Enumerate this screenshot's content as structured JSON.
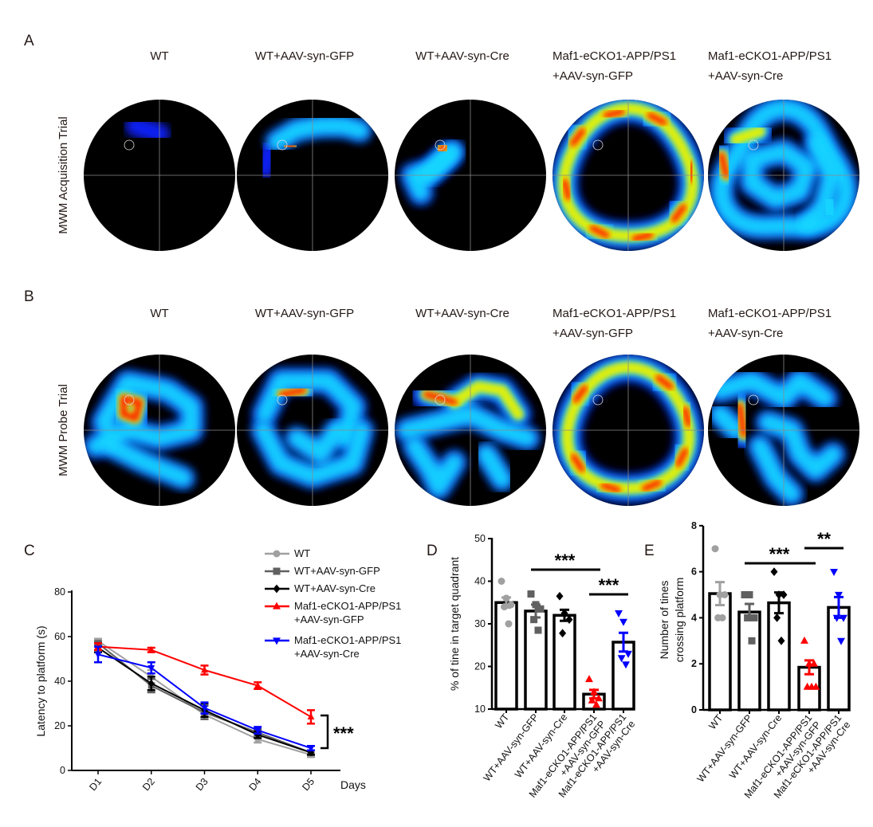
{
  "panel_labels": {
    "A": "A",
    "B": "B",
    "C": "C",
    "D": "D",
    "E": "E"
  },
  "row_labels": {
    "A": "MWM Acquisition Trial",
    "B": "MWM Probe Trial"
  },
  "group_titles": [
    {
      "line1": "WT",
      "line2": ""
    },
    {
      "line1": "WT+AAV-syn-GFP",
      "line2": ""
    },
    {
      "line1": "WT+AAV-syn-Cre",
      "line2": ""
    },
    {
      "line1": "Maf1-eCKO1-APP/PS1",
      "line2": "+AAV-syn-GFP"
    },
    {
      "line1": "Maf1-eCKO1-APP/PS1",
      "line2": "+AAV-syn-Cre"
    }
  ],
  "heatmap_colors": {
    "background": "#000000",
    "low": "#0a20ff",
    "mid": "#19d7ff",
    "high": "#e8f000",
    "peak": "#ff1a00"
  },
  "chart_data": [
    {
      "panel": "C",
      "type": "line",
      "xlabel": "Days",
      "ylabel": "Latency to platform (s)",
      "categories": [
        "D1",
        "D2",
        "D3",
        "D4",
        "D5"
      ],
      "ylim": [
        0,
        80
      ],
      "yticks": [
        0,
        20,
        40,
        60,
        80
      ],
      "legend": "top-right",
      "series": [
        {
          "name": "WT",
          "color": "#a0a0a0",
          "marker": "circle",
          "values": [
            58,
            42,
            25,
            14,
            7
          ],
          "errors": [
            1,
            3,
            2,
            1.5,
            1
          ]
        },
        {
          "name": "WT+AAV-syn-GFP",
          "color": "#606060",
          "marker": "square",
          "values": [
            57,
            38,
            26,
            17,
            8
          ],
          "errors": [
            1,
            3,
            3,
            1.5,
            1
          ]
        },
        {
          "name": "WT+AAV-syn-Cre",
          "color": "#000000",
          "marker": "diamond",
          "values": [
            55,
            39,
            27,
            16,
            8
          ],
          "errors": [
            2,
            3,
            3,
            1.5,
            1
          ]
        },
        {
          "name": "Maf1-eCKO1-APP/PS1",
          "name2": "+AAV-syn-GFP",
          "color": "#ff0000",
          "marker": "triangle-up",
          "values": [
            55.5,
            54,
            45,
            38,
            24
          ],
          "errors": [
            1.5,
            1,
            2,
            1.5,
            3
          ]
        },
        {
          "name": "Maf1-eCKO1-APP/PS1",
          "name2": "+AAV-syn-Cre",
          "color": "#0000ff",
          "marker": "triangle-down",
          "values": [
            52,
            46,
            28,
            18,
            10
          ],
          "errors": [
            3.5,
            2.5,
            2.5,
            1.5,
            1
          ]
        }
      ],
      "annotations": [
        "***"
      ]
    },
    {
      "panel": "D",
      "type": "bar",
      "ylabel": "% of tine in target quadrant",
      "ylim": [
        10,
        50
      ],
      "yticks": [
        10,
        20,
        30,
        40,
        50
      ],
      "categories": [
        {
          "line1": "WT",
          "line2": ""
        },
        {
          "line1": "WT+AAV-syn-GFP",
          "line2": ""
        },
        {
          "line1": "WT+AAV-syn-Cre",
          "line2": ""
        },
        {
          "line1": "Maf1-eCKO1-APP/PS1",
          "line2": "+AAV-syn-GFP"
        },
        {
          "line1": "Maf1-eCKO1-APP/PS1",
          "line2": "+AAV-syn-Cre"
        }
      ],
      "values": [
        35,
        33,
        32,
        13.5,
        25.7
      ],
      "errors": [
        1.2,
        1.5,
        1.3,
        1.0,
        2.2
      ],
      "points": [
        [
          40,
          36,
          34.5,
          34,
          30
        ],
        [
          37,
          34.5,
          33.5,
          31,
          28.5
        ],
        [
          36.5,
          32.5,
          31,
          27.8
        ],
        [
          17,
          14,
          12.5,
          12,
          11
        ],
        [
          32.5,
          30.5,
          23,
          22,
          20.5
        ]
      ],
      "point_colors": [
        "#a0a0a0",
        "#606060",
        "#000000",
        "#ff0000",
        "#0000ff"
      ],
      "markers": [
        "circle",
        "square",
        "diamond",
        "triangle-up",
        "triangle-down"
      ],
      "significance": [
        {
          "from": 1,
          "to": 3,
          "label": "***"
        },
        {
          "from": 3,
          "to": 4,
          "label": "***"
        }
      ]
    },
    {
      "panel": "E",
      "type": "bar",
      "ylabel": "Number of tines",
      "ylabel2": "crossing platform",
      "ylim": [
        0,
        8
      ],
      "yticks": [
        0,
        2,
        4,
        6,
        8
      ],
      "categories": [
        {
          "line1": "WT",
          "line2": ""
        },
        {
          "line1": "WT+AAV-syn-GFP",
          "line2": ""
        },
        {
          "line1": "WT+AAV-syn-Cre",
          "line2": ""
        },
        {
          "line1": "Maf1-eCKO1-APP/PS1",
          "line2": "+AAV-syn-GFP"
        },
        {
          "line1": "Maf1-eCKO1-APP/PS1",
          "line2": "+AAV-syn-Cre"
        }
      ],
      "values": [
        5.05,
        4.25,
        4.65,
        1.85,
        4.45
      ],
      "errors": [
        0.5,
        0.35,
        0.45,
        0.3,
        0.45
      ],
      "points": [
        [
          7,
          5,
          5,
          4,
          4
        ],
        [
          5,
          5,
          4,
          4,
          3
        ],
        [
          6,
          5,
          5,
          4,
          3
        ],
        [
          3,
          2,
          2,
          1,
          1,
          1
        ],
        [
          6,
          5,
          4,
          4,
          3
        ]
      ],
      "point_colors": [
        "#a0a0a0",
        "#606060",
        "#000000",
        "#ff0000",
        "#0000ff"
      ],
      "markers": [
        "circle",
        "square",
        "diamond",
        "triangle-up",
        "triangle-down"
      ],
      "significance": [
        {
          "from": 1,
          "to": 3,
          "label": "***"
        },
        {
          "from": 3,
          "to": 4,
          "label": "**"
        }
      ]
    }
  ]
}
